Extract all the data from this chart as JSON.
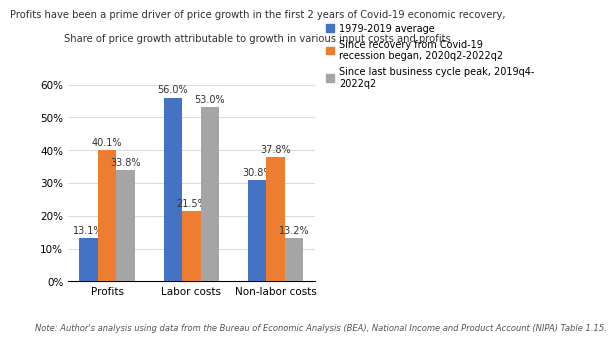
{
  "title_line1": "Profits have been a prime driver of price growth in the first 2 years of Covid-19 economic recovery,",
  "title_line2": "Share of price growth attributable to growth in various input costs and profits",
  "categories": [
    "Profits",
    "Labor costs",
    "Non-labor costs"
  ],
  "series": [
    {
      "label": "1979-2019 average",
      "color": "#4472C4",
      "values": [
        13.1,
        56.0,
        30.8
      ]
    },
    {
      "label": "Since recovery from Covid-19\nrecession began, 2020q2-2022q2",
      "color": "#ED7D31",
      "values": [
        40.1,
        21.5,
        37.8
      ]
    },
    {
      "label": "Since last business cycle peak, 2019q4-\n2022q2",
      "color": "#A5A5A5",
      "values": [
        33.8,
        53.0,
        13.2
      ]
    }
  ],
  "ylim": [
    0,
    65
  ],
  "yticks": [
    0,
    10,
    20,
    30,
    40,
    50,
    60
  ],
  "ytick_labels": [
    "0%",
    "10%",
    "20%",
    "30%",
    "40%",
    "50%",
    "60%"
  ],
  "note": "Note: Author's analysis using data from the Bureau of Economic Analysis (BEA), National Income and Product Account (NIPA) Table 1.15.",
  "background_color": "#FFFFFF",
  "bar_width": 0.22,
  "title_fontsize": 7.2,
  "label_fontsize": 7.0,
  "tick_fontsize": 7.5,
  "note_fontsize": 6.0,
  "legend_fontsize": 7.0
}
